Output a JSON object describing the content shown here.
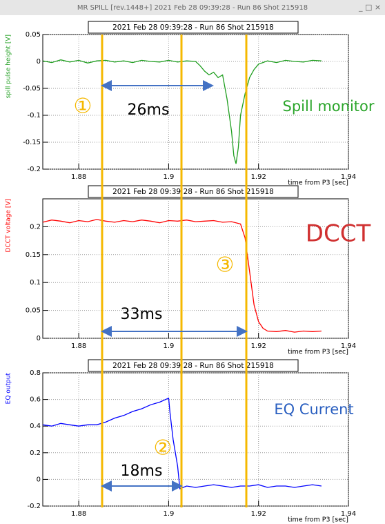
{
  "window": {
    "title": "MR SPILL [rev.1448+] 2021 Feb 28 09:39:28 - Run 86 Shot 215918"
  },
  "chart_data": [
    {
      "type": "line",
      "title": "2021 Feb 28 09:39:28 - Run 86 Shot 215918",
      "ylabel": "spill pulse height [V]",
      "xlabel": "time from P3 [sec]",
      "annotations": [
        "①",
        "26ms",
        "Spill monitor"
      ],
      "color": "#1f9e1f",
      "x": [
        1.872,
        1.874,
        1.876,
        1.878,
        1.88,
        1.882,
        1.884,
        1.886,
        1.888,
        1.89,
        1.892,
        1.894,
        1.896,
        1.898,
        1.9,
        1.902,
        1.904,
        1.906,
        1.907,
        1.908,
        1.909,
        1.91,
        1.911,
        1.912,
        1.913,
        1.914,
        1.9145,
        1.915,
        1.9155,
        1.916,
        1.917,
        1.918,
        1.919,
        1.92,
        1.922,
        1.924,
        1.926,
        1.928,
        1.93,
        1.932,
        1.934
      ],
      "values": [
        0.001,
        -0.002,
        0.003,
        -0.001,
        0.002,
        -0.003,
        0.001,
        0.002,
        -0.001,
        0.001,
        -0.002,
        0.002,
        0,
        -0.001,
        0.002,
        -0.001,
        0.001,
        0,
        -0.008,
        -0.018,
        -0.025,
        -0.02,
        -0.03,
        -0.025,
        -0.07,
        -0.13,
        -0.175,
        -0.19,
        -0.16,
        -0.1,
        -0.06,
        -0.03,
        -0.015,
        -0.005,
        0.001,
        -0.002,
        0.002,
        0,
        -0.001,
        0.002,
        0.001
      ],
      "xlim": [
        1.872,
        1.94
      ],
      "xticks": [
        1.88,
        1.9,
        1.92,
        1.94
      ],
      "ylim": [
        -0.2,
        0.05
      ],
      "yticks": [
        0.05,
        0,
        -0.05,
        -0.1,
        -0.15,
        -0.2
      ],
      "grid": true
    },
    {
      "type": "line",
      "title": "2021 Feb 28 09:39:28 - Run 86 Shot 215918",
      "ylabel": "DCCT voltage [V]",
      "xlabel": "time from P3 [sec]",
      "annotations": [
        "DCCT",
        "③",
        "33ms"
      ],
      "color": "#ff0000",
      "x": [
        1.872,
        1.874,
        1.876,
        1.878,
        1.88,
        1.882,
        1.884,
        1.886,
        1.888,
        1.89,
        1.892,
        1.894,
        1.896,
        1.898,
        1.9,
        1.902,
        1.904,
        1.906,
        1.908,
        1.91,
        1.912,
        1.914,
        1.916,
        1.917,
        1.918,
        1.919,
        1.92,
        1.921,
        1.922,
        1.924,
        1.926,
        1.928,
        1.93,
        1.932,
        1.934
      ],
      "values": [
        0.208,
        0.212,
        0.21,
        0.207,
        0.211,
        0.209,
        0.213,
        0.21,
        0.208,
        0.211,
        0.209,
        0.212,
        0.21,
        0.207,
        0.211,
        0.21,
        0.212,
        0.209,
        0.21,
        0.211,
        0.208,
        0.209,
        0.205,
        0.18,
        0.12,
        0.06,
        0.03,
        0.018,
        0.013,
        0.012,
        0.014,
        0.011,
        0.013,
        0.012,
        0.013
      ],
      "xlim": [
        1.872,
        1.94
      ],
      "xticks": [
        1.88,
        1.9,
        1.92,
        1.94
      ],
      "ylim": [
        0,
        0.25
      ],
      "yticks": [
        0,
        0.05,
        0.1,
        0.15,
        0.2
      ],
      "grid": true
    },
    {
      "type": "line",
      "title": "2021 Feb 28 09:39:28 - Run 86 Shot 215918",
      "ylabel": "EQ output",
      "xlabel": "time from P3 [sec]",
      "annotations": [
        "EQ Current",
        "②",
        "18ms"
      ],
      "color": "#0000ff",
      "x": [
        1.872,
        1.874,
        1.876,
        1.878,
        1.88,
        1.882,
        1.884,
        1.886,
        1.888,
        1.89,
        1.892,
        1.894,
        1.896,
        1.898,
        1.9,
        1.9003,
        1.901,
        1.902,
        1.9025,
        1.904,
        1.906,
        1.908,
        1.91,
        1.912,
        1.914,
        1.916,
        1.918,
        1.92,
        1.922,
        1.924,
        1.926,
        1.928,
        1.93,
        1.932,
        1.934
      ],
      "values": [
        0.41,
        0.4,
        0.42,
        0.41,
        0.4,
        0.41,
        0.41,
        0.43,
        0.46,
        0.48,
        0.51,
        0.53,
        0.56,
        0.58,
        0.61,
        0.5,
        0.3,
        0.1,
        -0.07,
        -0.05,
        -0.06,
        -0.05,
        -0.04,
        -0.05,
        -0.06,
        -0.05,
        -0.05,
        -0.04,
        -0.06,
        -0.05,
        -0.05,
        -0.06,
        -0.05,
        -0.04,
        -0.05
      ],
      "xlim": [
        1.872,
        1.94
      ],
      "xticks": [
        1.88,
        1.9,
        1.92,
        1.94
      ],
      "ylim": [
        -0.2,
        0.8
      ],
      "yticks": [
        0.8,
        0.6,
        0.4,
        0.2,
        0,
        -0.2
      ],
      "grid": true
    }
  ]
}
